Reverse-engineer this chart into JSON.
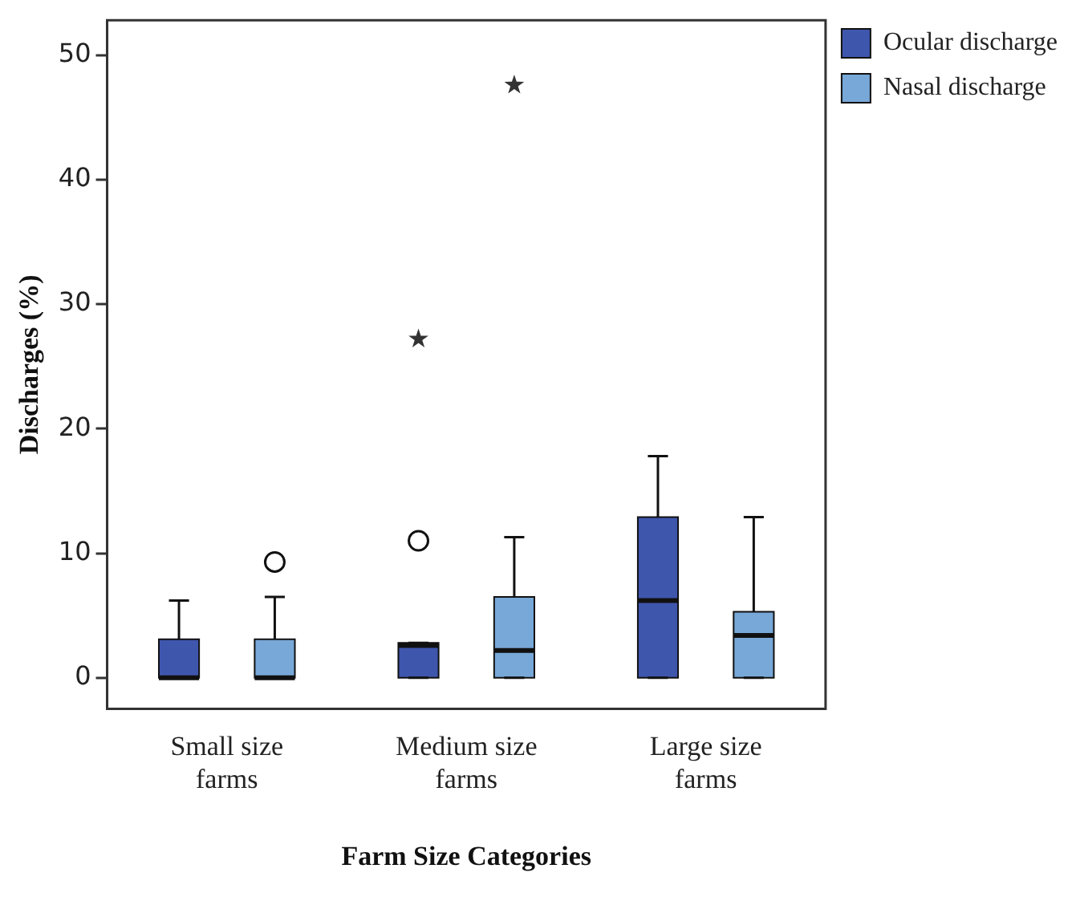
{
  "chart_data": {
    "type": "box",
    "xlabel": "Farm Size Categories",
    "ylabel": "Discharges (%)",
    "categories": [
      "Small size farms",
      "Medium size farms",
      "Large size farms"
    ],
    "series": [
      {
        "name": "Ocular discharge",
        "color": "#3f56ad",
        "boxes": [
          {
            "low": 0,
            "q1": 0,
            "median": 0,
            "q3": 3.1,
            "high": 6.2
          },
          {
            "low": 0,
            "q1": 0,
            "median": 2.6,
            "q3": 2.8,
            "high": 2.8,
            "outliers": [
              11.0,
              27.2
            ]
          },
          {
            "low": 0,
            "q1": 0,
            "median": 6.2,
            "q3": 12.9,
            "high": 17.8
          }
        ]
      },
      {
        "name": "Nasal discharge",
        "color": "#78a8d8",
        "boxes": [
          {
            "low": 0,
            "q1": 0,
            "median": 0,
            "q3": 3.1,
            "high": 6.5,
            "outliers": [
              9.3
            ]
          },
          {
            "low": 0,
            "q1": 0,
            "median": 2.2,
            "q3": 6.5,
            "high": 11.3,
            "outliers": [
              47.6
            ]
          },
          {
            "low": 0,
            "q1": 0,
            "median": 3.4,
            "q3": 5.3,
            "high": 12.9
          }
        ]
      }
    ],
    "ylim": [
      -2.5,
      52.8
    ],
    "yticks": [
      0,
      10,
      20,
      30,
      40,
      50
    ],
    "grid": false,
    "legend": "top right"
  }
}
